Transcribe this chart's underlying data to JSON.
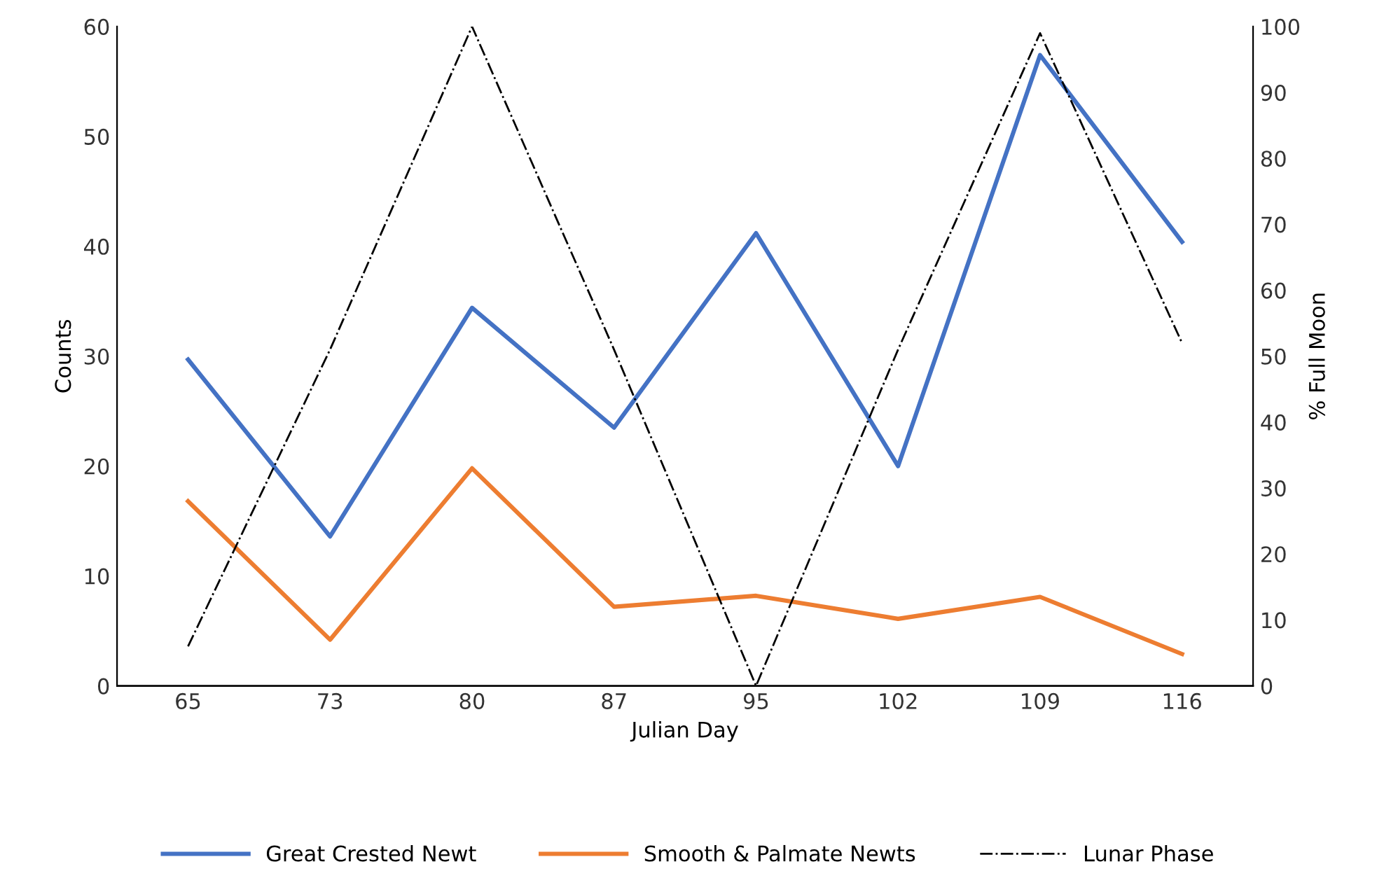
{
  "chart_data": {
    "type": "line",
    "xlabel": "Julian Day",
    "ylabel": "Counts",
    "y2label": "% Full Moon",
    "categories": [
      "65",
      "73",
      "80",
      "87",
      "95",
      "102",
      "109",
      "116"
    ],
    "series": [
      {
        "name": "Great Crested Newt",
        "color": "#4472c4",
        "values": [
          29.7,
          13.6,
          34.4,
          23.5,
          41.2,
          20,
          57.4,
          40.4
        ]
      },
      {
        "name": "Smooth & Palmate Newts",
        "color": "#ed7d31",
        "values": [
          16.8,
          4.2,
          19.8,
          7.2,
          8.2,
          6.1,
          8.1,
          2.9
        ]
      },
      {
        "name": "Lunar Phase",
        "color": "#000000",
        "axis": "y2",
        "line_style": "dashdot",
        "values": [
          6,
          51,
          100,
          51,
          0,
          51,
          99,
          52
        ]
      }
    ],
    "ylim": [
      0,
      60
    ],
    "yticks": [
      0,
      10,
      20,
      30,
      40,
      50,
      60
    ],
    "y2lim": [
      0,
      100
    ],
    "y2ticks": [
      0,
      10,
      20,
      30,
      40,
      50,
      60,
      70,
      80,
      90,
      100
    ],
    "grid": false,
    "legend": "bottom"
  }
}
